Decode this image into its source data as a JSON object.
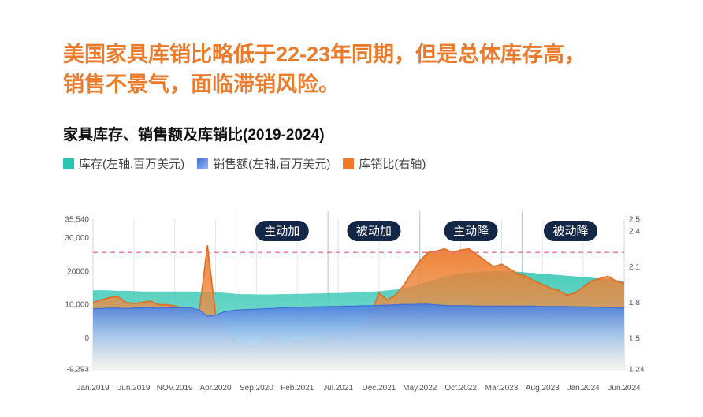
{
  "headline": {
    "line1": "美国家具库销比略低于22-23年同期，但是总体库存高，",
    "line2": "销售不景气，面临滞销风险。"
  },
  "colors": {
    "headline": "#ec7a2b",
    "inventory": "#2cc3b0",
    "sales": "#4a7fdc",
    "ratio": "#ec7a2b",
    "phase_badge": "#142747",
    "dashed_line": "#ef6f8e"
  },
  "chart_data": {
    "type": "area",
    "title": "家具库存、销售额及库销比(2019-2024)",
    "legend": [
      {
        "key": "inventory",
        "label": "库存(左轴,百万美元)",
        "icon": "teal-square-icon"
      },
      {
        "key": "sales",
        "label": "销售额(左轴,百万美元)",
        "icon": "blue-gradient-square-icon"
      },
      {
        "key": "ratio",
        "label": "库销比(右轴)",
        "icon": "orange-square-icon"
      }
    ],
    "x_ticks": [
      "Jan.2019",
      "Jun.2019",
      "NOV.2019",
      "Apr.2020",
      "Sep.2020",
      "Feb.2021",
      "Jul.2021",
      "Dec.2021",
      "May.2022",
      "Oct.2022",
      "Mar.2023",
      "Aug.2023",
      "Jan.2024",
      "Jun.2024"
    ],
    "y_left_ticks": [
      "35,540",
      "30,000",
      "20000",
      "10,000",
      "0",
      "-9,293"
    ],
    "y_left_values": [
      35540,
      30000,
      20000,
      10000,
      0,
      -9293
    ],
    "ylim_left": [
      -9293,
      35540
    ],
    "y_right_ticks": [
      "2.5",
      "2.4",
      "2.1",
      "1.8",
      "1.5",
      "1.24"
    ],
    "y_right_values": [
      2.5,
      2.4,
      2.1,
      1.8,
      1.5,
      1.24
    ],
    "ylim_right": [
      1.24,
      2.5
    ],
    "months": 66,
    "phases": [
      {
        "label": "主动加",
        "start": 28,
        "end": 46
      },
      {
        "label": "被动加",
        "start": 46,
        "end": 64
      },
      {
        "label": "主动降",
        "start": 64,
        "end": 84
      },
      {
        "label": "被动降",
        "start": 84,
        "end": 103
      }
    ],
    "dashed_line_right_value": 2.22,
    "inventory": [
      14200,
      14300,
      14200,
      14100,
      14100,
      14000,
      13900,
      13900,
      13900,
      13900,
      13900,
      13900,
      13900,
      13800,
      13800,
      13700,
      13500,
      13300,
      13100,
      13100,
      13000,
      13000,
      13000,
      13100,
      13100,
      13200,
      13200,
      13300,
      13300,
      13400,
      13400,
      13500,
      13600,
      13700,
      13800,
      14000,
      14200,
      14500,
      14900,
      15400,
      16100,
      16800,
      17500,
      18200,
      18800,
      19200,
      19500,
      19700,
      19900,
      20000,
      20000,
      19900,
      19800,
      19600,
      19400,
      19200,
      19000,
      18800,
      18600,
      18400,
      18200,
      18000,
      17800,
      17600,
      17300,
      17100
    ],
    "sales": [
      8700,
      8800,
      8900,
      8900,
      8800,
      8900,
      9000,
      9000,
      8900,
      9000,
      9000,
      9100,
      9000,
      8400,
      6500,
      6800,
      7800,
      8200,
      8400,
      8500,
      8600,
      8700,
      8800,
      9000,
      9100,
      9200,
      9200,
      9300,
      9300,
      9400,
      9400,
      9500,
      9500,
      9600,
      9600,
      9700,
      9800,
      9900,
      10000,
      10000,
      10100,
      10100,
      9900,
      9700,
      9600,
      9600,
      9600,
      9500,
      9500,
      9500,
      9500,
      9500,
      9500,
      9500,
      9500,
      9400,
      9400,
      9400,
      9400,
      9300,
      9300,
      9200,
      9200,
      9100,
      9000,
      8900
    ],
    "ratio": [
      1.8,
      1.82,
      1.84,
      1.85,
      1.8,
      1.79,
      1.8,
      1.81,
      1.78,
      1.78,
      1.77,
      1.75,
      1.73,
      1.72,
      2.28,
      1.7,
      1.58,
      1.5,
      1.45,
      1.42,
      1.44,
      1.49,
      1.52,
      1.44,
      1.48,
      1.46,
      1.47,
      1.5,
      1.47,
      1.53,
      1.55,
      1.51,
      1.55,
      1.58,
      1.7,
      1.88,
      1.82,
      1.86,
      1.94,
      2.05,
      2.15,
      2.22,
      2.23,
      2.25,
      2.22,
      2.24,
      2.25,
      2.2,
      2.15,
      2.1,
      2.12,
      2.08,
      2.04,
      2.02,
      1.98,
      1.95,
      1.92,
      1.9,
      1.86,
      1.88,
      1.93,
      1.98,
      2.0,
      2.02,
      1.98,
      1.96
    ]
  }
}
